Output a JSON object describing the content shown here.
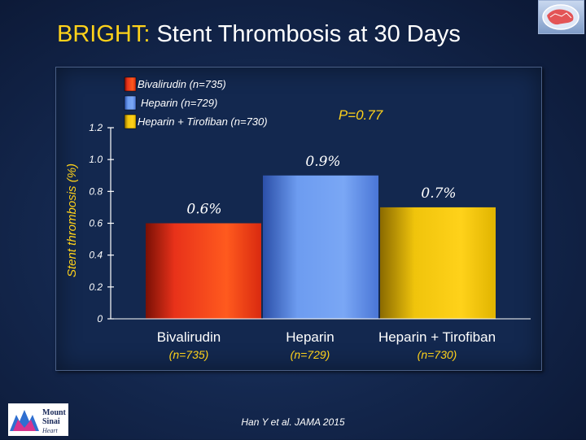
{
  "title": {
    "accent": "BRIGHT:",
    "main": " Stent Thrombosis at 30 Days"
  },
  "citation": "Han Y et al. JAMA 2015",
  "logo_text": [
    "Mount",
    "Sinai",
    "Heart"
  ],
  "chart_data": {
    "type": "bar",
    "ylabel": "Stent thrombosis (%)",
    "ylim": [
      0,
      1.2
    ],
    "yticks": [
      "0",
      "0.2",
      "0.4",
      "0.6",
      "0.8",
      "1.0",
      "1.2"
    ],
    "ytick_values": [
      0,
      0.2,
      0.4,
      0.6,
      0.8,
      1.0,
      1.2
    ],
    "categories": [
      "Bivalirudin",
      "Heparin",
      "Heparin + Tirofiban"
    ],
    "category_sublabels": [
      "(n=735)",
      "(n=729)",
      "(n=730)"
    ],
    "values": [
      0.6,
      0.9,
      0.7
    ],
    "data_labels": [
      "0.6%",
      "0.9%",
      "0.7%"
    ],
    "legend": [
      {
        "label": "Bivalirudin (n=735)",
        "color": "#e8321a"
      },
      {
        "label": "Heparin (n=729)",
        "color": "#5b8ee6"
      },
      {
        "label": "Heparin + Tirofiban (n=730)",
        "color": "#e8c20a"
      }
    ],
    "legend_position": "top-left",
    "annotation": "P=0.77",
    "grid": false
  }
}
